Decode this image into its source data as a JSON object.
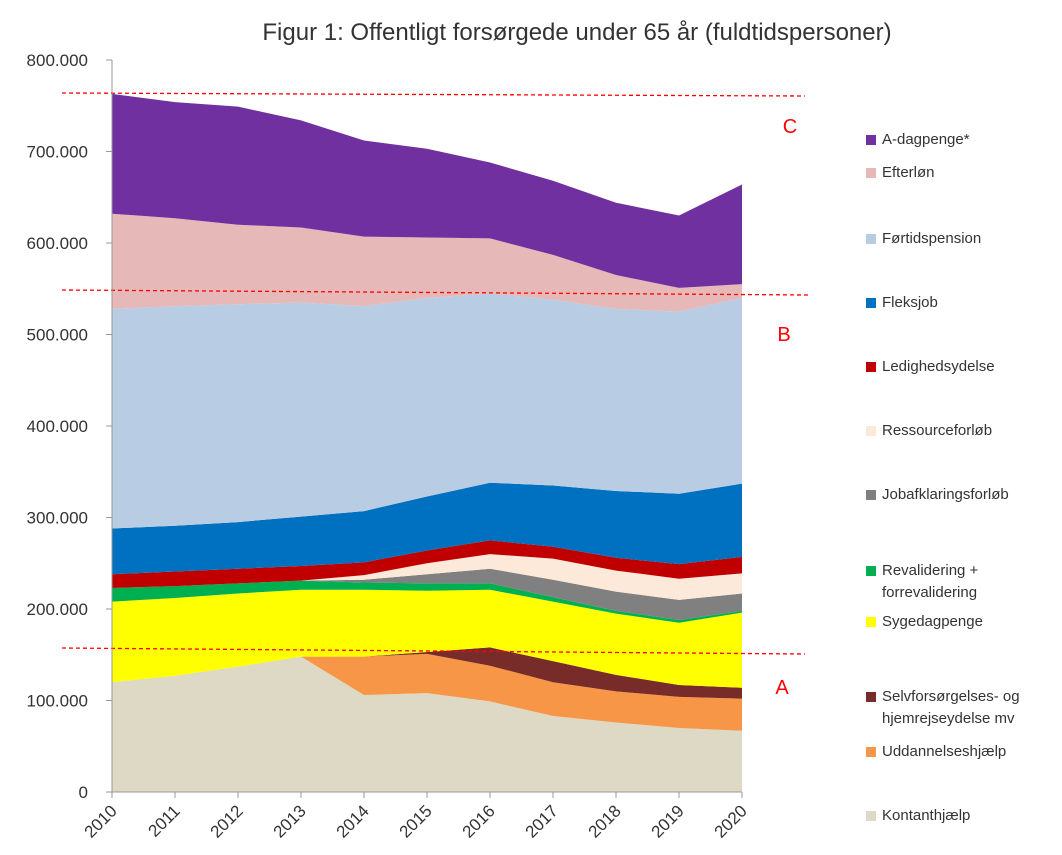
{
  "chart_data": {
    "type": "stacked_area",
    "title": "Figur 1: Offentligt forsørgede under 65 år (fuldtidspersoner)",
    "categories": [
      "2010",
      "2011",
      "2012",
      "2013",
      "2014",
      "2015",
      "2016",
      "2017",
      "2018",
      "2019",
      "2020"
    ],
    "series": [
      {
        "name": "Kontanthjælp",
        "color": "#ddd9c4",
        "values": [
          120000,
          127000,
          137000,
          148000,
          106000,
          108000,
          99000,
          83000,
          76000,
          70000,
          67000
        ]
      },
      {
        "name": "Uddannelseshjælp",
        "color": "#f79646",
        "values": [
          0,
          0,
          0,
          0,
          42000,
          43000,
          39000,
          37000,
          34000,
          34000,
          35000
        ]
      },
      {
        "name": "Selvforsørgelses- og hjemrejseydelse mv",
        "color": "#772c2a",
        "values": [
          0,
          0,
          0,
          0,
          0,
          2000,
          20000,
          23000,
          18000,
          13000,
          12000
        ]
      },
      {
        "name": "Sygedagpenge",
        "color": "#ffff00",
        "values": [
          88000,
          85000,
          80000,
          73000,
          73000,
          67000,
          63000,
          65000,
          67000,
          68000,
          82000
        ]
      },
      {
        "name": "Revalidering + forrevalidering",
        "color": "#00b050",
        "values": [
          15000,
          13000,
          11000,
          10000,
          8000,
          8000,
          7000,
          5000,
          3000,
          3000,
          2000
        ]
      },
      {
        "name": "Jobafklaringsforløb",
        "color": "#808080",
        "values": [
          0,
          0,
          0,
          0,
          3000,
          10000,
          16000,
          19000,
          21000,
          22000,
          19000
        ]
      },
      {
        "name": "Ressourceforløb",
        "color": "#fde9d9",
        "values": [
          0,
          0,
          0,
          0,
          5000,
          12000,
          16000,
          23000,
          23000,
          23000,
          22000
        ]
      },
      {
        "name": "Ledighedsydelse",
        "color": "#c00000",
        "values": [
          15000,
          16000,
          16000,
          16000,
          14000,
          14000,
          15000,
          13000,
          14000,
          16000,
          18000
        ]
      },
      {
        "name": "Fleksjob",
        "color": "#0070c0",
        "values": [
          50000,
          50000,
          51000,
          54000,
          56000,
          59000,
          63000,
          67000,
          73000,
          77000,
          80000
        ]
      },
      {
        "name": "Førtidspension",
        "color": "#b8cce4",
        "values": [
          240000,
          240000,
          238000,
          234000,
          224000,
          217000,
          207000,
          203000,
          199000,
          199000,
          203000
        ]
      },
      {
        "name": "Efterløn",
        "color": "#e6b8b7",
        "values": [
          104000,
          96000,
          87000,
          82000,
          76000,
          66000,
          60000,
          49000,
          37000,
          26000,
          15000
        ]
      },
      {
        "name": "A-dagpenge*",
        "color": "#7030a0",
        "values": [
          131000,
          127000,
          129000,
          117000,
          105000,
          97000,
          83000,
          81000,
          79000,
          79000,
          109000
        ]
      }
    ],
    "ylim": [
      0,
      800000
    ],
    "yticks": [
      0,
      {
        "value": 100000,
        "label": "100.000"
      },
      {
        "value": 200000,
        "label": "200.000"
      },
      {
        "value": 300000,
        "label": "300.000"
      },
      {
        "value": 400000,
        "label": "400.000"
      },
      {
        "value": 500000,
        "label": "500.000"
      },
      {
        "value": 600000,
        "label": "600.000"
      },
      {
        "value": 700000,
        "label": "700.000"
      },
      {
        "value": 800000,
        "label": "800.000"
      }
    ],
    "annotations": [
      "C",
      "B",
      "A"
    ],
    "legend": "right"
  }
}
